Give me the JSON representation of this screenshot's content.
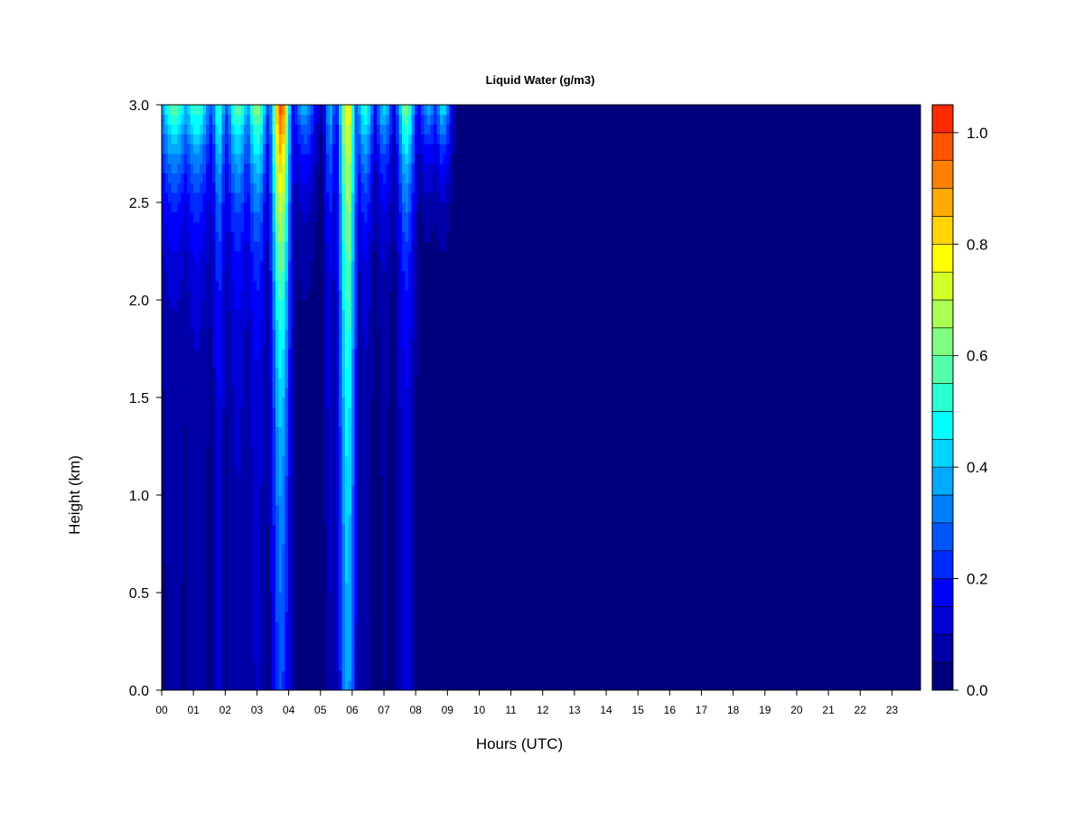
{
  "chart_data": {
    "type": "heatmap",
    "title": "Liquid Water (g/m3)",
    "xlabel": "Hours (UTC)",
    "ylabel": "Height (km)",
    "xlim": [
      0,
      23.9
    ],
    "ylim": [
      0,
      3.0
    ],
    "x_ticks": [
      "00",
      "01",
      "02",
      "03",
      "04",
      "05",
      "06",
      "07",
      "08",
      "09",
      "10",
      "11",
      "12",
      "13",
      "14",
      "15",
      "16",
      "17",
      "18",
      "19",
      "20",
      "21",
      "22",
      "23"
    ],
    "y_ticks": [
      "0.0",
      "0.5",
      "1.0",
      "1.5",
      "2.0",
      "2.5",
      "3.0"
    ],
    "colorbar": {
      "range": [
        0.0,
        1.05
      ],
      "tick_labels": [
        "0.0",
        "0.2",
        "0.4",
        "0.6",
        "0.8",
        "1.0"
      ],
      "levels": [
        0.0,
        0.05,
        0.1,
        0.15,
        0.2,
        0.25,
        0.3,
        0.35,
        0.4,
        0.45,
        0.5,
        0.55,
        0.6,
        0.65,
        0.7,
        0.75,
        0.8,
        0.85,
        0.9,
        0.95,
        1.0,
        1.05
      ],
      "colors": [
        "#00007f",
        "#0000a8",
        "#0000d4",
        "#0000ff",
        "#002aff",
        "#0055ff",
        "#0080ff",
        "#00aaff",
        "#00d4ff",
        "#00ffff",
        "#2affd4",
        "#55ffaa",
        "#80ff80",
        "#aaff55",
        "#d4ff2a",
        "#ffff00",
        "#ffd400",
        "#ffaa00",
        "#ff8000",
        "#ff5500",
        "#ff2a00",
        "#ff0000",
        "#d40000",
        "#a80000",
        "#7f0000"
      ]
    },
    "features": [
      {
        "hour": 0.4,
        "width": 0.55,
        "top_value": 0.62,
        "decay_km": 0.4,
        "base_value": 0.06
      },
      {
        "hour": 1.1,
        "width": 0.5,
        "top_value": 0.58,
        "decay_km": 0.45,
        "base_value": 0.07
      },
      {
        "hour": 1.8,
        "width": 0.22,
        "top_value": 0.55,
        "decay_km": 0.6,
        "base_value": 0.12
      },
      {
        "hour": 2.4,
        "width": 0.4,
        "top_value": 0.6,
        "decay_km": 0.5,
        "base_value": 0.09
      },
      {
        "hour": 3.0,
        "width": 0.35,
        "top_value": 0.66,
        "decay_km": 0.55,
        "base_value": 0.1
      },
      {
        "hour": 3.75,
        "width": 0.3,
        "top_value": 1.0,
        "decay_km": 1.2,
        "base_value": 0.2
      },
      {
        "hour": 4.5,
        "width": 0.4,
        "top_value": 0.4,
        "decay_km": 0.35,
        "base_value": 0.03
      },
      {
        "hour": 5.3,
        "width": 0.2,
        "top_value": 0.4,
        "decay_km": 0.5,
        "base_value": 0.1
      },
      {
        "hour": 5.85,
        "width": 0.28,
        "top_value": 0.78,
        "decay_km": 1.6,
        "base_value": 0.3
      },
      {
        "hour": 6.4,
        "width": 0.3,
        "top_value": 0.55,
        "decay_km": 0.45,
        "base_value": 0.07
      },
      {
        "hour": 7.0,
        "width": 0.3,
        "top_value": 0.45,
        "decay_km": 0.4,
        "base_value": 0.05
      },
      {
        "hour": 7.7,
        "width": 0.3,
        "top_value": 0.65,
        "decay_km": 0.5,
        "base_value": 0.12
      },
      {
        "hour": 8.4,
        "width": 0.35,
        "top_value": 0.38,
        "decay_km": 0.35,
        "base_value": 0.0
      },
      {
        "hour": 8.85,
        "width": 0.3,
        "top_value": 0.45,
        "decay_km": 0.35,
        "base_value": 0.0
      }
    ]
  }
}
